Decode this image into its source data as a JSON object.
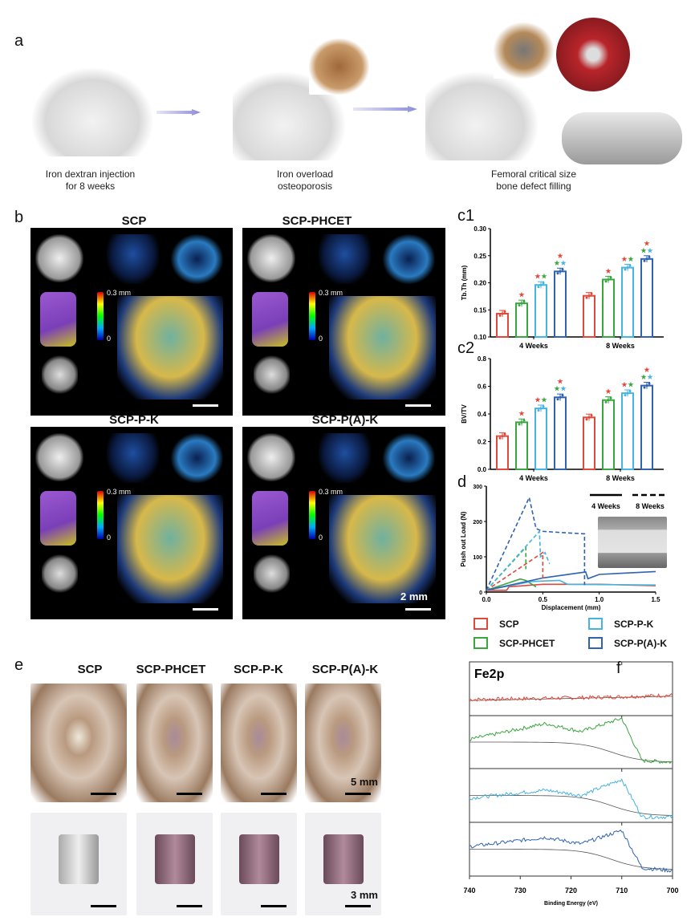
{
  "panel_labels": {
    "a": "a",
    "b": "b",
    "c1": "c1",
    "c2": "c2",
    "d": "d",
    "e": "e",
    "f": "f"
  },
  "panel_a": {
    "captions": [
      "Iron dextran injection\nfor 8 weeks",
      "Iron overload\nosteoporosis",
      "Femoral critical size\nbone defect filling"
    ]
  },
  "panel_b": {
    "titles": [
      "SCP",
      "SCP-PHCET",
      "SCP-P-K",
      "SCP-P(A)-K"
    ],
    "colorbar_max": "0.3 mm",
    "colorbar_min": "0",
    "scale_bar": "2 mm"
  },
  "groups": [
    "SCP",
    "SCP-PHCET",
    "SCP-P-K",
    "SCP-P(A)-K"
  ],
  "colors": {
    "SCP": "#e0493a",
    "SCP-PHCET": "#3aa640",
    "SCP-P-K": "#46b4e0",
    "SCP-P(A)-K": "#2f62b0"
  },
  "legend": {
    "items": [
      "SCP",
      "SCP-PHCET",
      "SCP-P-K",
      "SCP-P(A)-K"
    ]
  },
  "panel_e": {
    "titles": [
      "SCP",
      "SCP-PHCET",
      "SCP-P-K",
      "SCP-P(A)-K"
    ],
    "scale_top": "5 mm",
    "scale_bottom": "3 mm"
  },
  "chart_data": [
    {
      "id": "c1",
      "type": "bar",
      "ylabel": "Tb.Th (mm)",
      "ylim": [
        0.1,
        0.3
      ],
      "yticks": [
        "0.10",
        "0.15",
        "0.20",
        "0.25",
        "0.30"
      ],
      "categories": [
        "4 Weeks",
        "8 Weeks"
      ],
      "series": [
        {
          "name": "SCP",
          "values": [
            0.143,
            0.176
          ]
        },
        {
          "name": "SCP-PHCET",
          "values": [
            0.162,
            0.206
          ]
        },
        {
          "name": "SCP-P-K",
          "values": [
            0.196,
            0.228
          ]
        },
        {
          "name": "SCP-P(A)-K",
          "values": [
            0.221,
            0.244
          ]
        }
      ],
      "significance": [
        [
          [],
          [
            "SCP"
          ],
          [
            "SCP",
            "SCP-PHCET"
          ],
          [
            "SCP",
            "SCP-PHCET",
            "SCP-P-K"
          ]
        ],
        [
          [],
          [
            "SCP"
          ],
          [
            "SCP",
            "SCP-PHCET"
          ],
          [
            "SCP",
            "SCP-PHCET",
            "SCP-P-K"
          ]
        ]
      ]
    },
    {
      "id": "c2",
      "type": "bar",
      "ylabel": "BV/TV",
      "ylim": [
        0,
        0.8
      ],
      "yticks": [
        "0.0",
        "0.2",
        "0.4",
        "0.6",
        "0.8"
      ],
      "categories": [
        "4 Weeks",
        "8 Weeks"
      ],
      "series": [
        {
          "name": "SCP",
          "values": [
            0.24,
            0.375
          ]
        },
        {
          "name": "SCP-PHCET",
          "values": [
            0.34,
            0.5
          ]
        },
        {
          "name": "SCP-P-K",
          "values": [
            0.44,
            0.55
          ]
        },
        {
          "name": "SCP-P(A)-K",
          "values": [
            0.52,
            0.605
          ]
        }
      ],
      "significance": [
        [
          [],
          [
            "SCP"
          ],
          [
            "SCP",
            "SCP-PHCET"
          ],
          [
            "SCP",
            "SCP-PHCET",
            "SCP-P-K"
          ]
        ],
        [
          [],
          [
            "SCP"
          ],
          [
            "SCP",
            "SCP-PHCET"
          ],
          [
            "SCP",
            "SCP-PHCET",
            "SCP-P-K"
          ]
        ]
      ]
    },
    {
      "id": "d",
      "type": "line",
      "xlabel": "Displacement (mm)",
      "ylabel": "Push out Load (N)",
      "xlim": [
        0,
        1.5
      ],
      "ylim": [
        0,
        300
      ],
      "xticks": [
        "0.0",
        "0.5",
        "1.0",
        "1.5"
      ],
      "yticks": [
        "0",
        "100",
        "200",
        "300"
      ],
      "line_legend": [
        "4 Weeks",
        "8 Weeks"
      ],
      "series": [
        {
          "group": "SCP",
          "time": "4 Weeks",
          "points": [
            [
              0,
              5
            ],
            [
              0.18,
              5
            ],
            [
              0.2,
              15
            ],
            [
              0.5,
              22
            ],
            [
              1.0,
              22
            ],
            [
              1.5,
              18
            ]
          ]
        },
        {
          "group": "SCP-PHCET",
          "time": "4 Weeks",
          "points": [
            [
              0,
              5
            ],
            [
              0.3,
              37
            ],
            [
              0.35,
              33
            ],
            [
              0.44,
              15
            ]
          ]
        },
        {
          "group": "SCP-P-K",
          "time": "4 Weeks",
          "points": [
            [
              0,
              5
            ],
            [
              0.4,
              30
            ],
            [
              0.65,
              33
            ],
            [
              0.72,
              22
            ],
            [
              1.5,
              20
            ]
          ]
        },
        {
          "group": "SCP-P(A)-K",
          "time": "4 Weeks",
          "points": [
            [
              0,
              5
            ],
            [
              0.5,
              40
            ],
            [
              0.88,
              57
            ],
            [
              0.9,
              38
            ],
            [
              1.0,
              50
            ],
            [
              1.5,
              58
            ]
          ]
        },
        {
          "group": "SCP",
          "time": "8 Weeks",
          "points": [
            [
              0,
              5
            ],
            [
              0.5,
              112
            ],
            [
              0.5,
              30
            ]
          ]
        },
        {
          "group": "SCP-PHCET",
          "time": "8 Weeks",
          "points": [
            [
              0,
              5
            ],
            [
              0.35,
              127
            ],
            [
              0.35,
              65
            ]
          ]
        },
        {
          "group": "SCP-P-K",
          "time": "8 Weeks",
          "points": [
            [
              0,
              5
            ],
            [
              0.47,
              172
            ],
            [
              0.48,
              100
            ],
            [
              0.52,
              112
            ],
            [
              0.56,
              80
            ]
          ]
        },
        {
          "group": "SCP-P(A)-K",
          "time": "8 Weeks",
          "points": [
            [
              0,
              5
            ],
            [
              0.38,
              268
            ],
            [
              0.44,
              180
            ],
            [
              0.5,
              172
            ],
            [
              0.7,
              168
            ],
            [
              0.87,
              165
            ],
            [
              0.87,
              20
            ]
          ]
        }
      ]
    },
    {
      "id": "f",
      "type": "line",
      "title": "Fe2p",
      "xlabel": "Binding Energy (eV)",
      "xlim": [
        740,
        700
      ],
      "xticks": [
        "740",
        "730",
        "720",
        "710",
        "700"
      ],
      "series": [
        {
          "group": "SCP",
          "points": [
            [
              740,
              0.3
            ],
            [
              720,
              0.33
            ],
            [
              710,
              0.35
            ],
            [
              700,
              0.38
            ]
          ]
        },
        {
          "group": "SCP-PHCET",
          "points": [
            [
              740,
              0.55
            ],
            [
              725,
              0.85
            ],
            [
              718,
              0.7
            ],
            [
              710,
              0.95
            ],
            [
              706,
              0.15
            ],
            [
              700,
              0.12
            ]
          ]
        },
        {
          "group": "SCP-P-K",
          "points": [
            [
              740,
              0.45
            ],
            [
              725,
              0.6
            ],
            [
              718,
              0.5
            ],
            [
              710,
              0.8
            ],
            [
              706,
              0.1
            ],
            [
              700,
              0.1
            ]
          ]
        },
        {
          "group": "SCP-P(A)-K",
          "points": [
            [
              740,
              0.55
            ],
            [
              725,
              0.72
            ],
            [
              718,
              0.6
            ],
            [
              710,
              0.85
            ],
            [
              706,
              0.15
            ],
            [
              700,
              0.1
            ]
          ]
        }
      ]
    }
  ]
}
